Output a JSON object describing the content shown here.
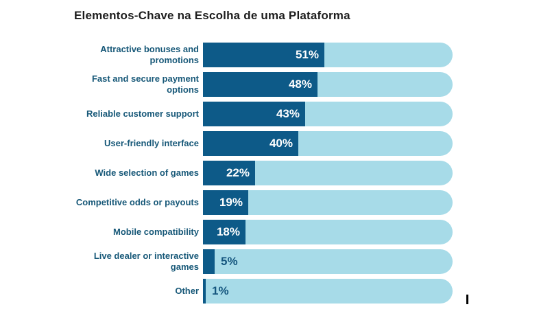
{
  "title": "Elementos-Chave na Escolha de uma Plataforma",
  "chart_data": {
    "type": "bar",
    "orientation": "horizontal",
    "title": "Elementos-Chave na Escolha de uma Plataforma",
    "categories": [
      "Attractive bonuses and promotions",
      "Fast and secure payment options",
      "Reliable customer support",
      "User-friendly interface",
      "Wide selection of games",
      "Competitive odds or payouts",
      "Mobile compatibility",
      "Live dealer or interactive games",
      "Other"
    ],
    "category_lines": [
      "Attractive bonuses and\npromotions",
      "Fast and secure payment\noptions",
      "Reliable customer support",
      "User-friendly interface",
      "Wide selection of games",
      "Competitive odds or payouts",
      "Mobile compatibility",
      "Live dealer or interactive\ngames",
      "Other"
    ],
    "values": [
      51,
      48,
      43,
      40,
      22,
      19,
      18,
      5,
      1
    ],
    "value_labels": [
      "51%",
      "48%",
      "43%",
      "40%",
      "22%",
      "19%",
      "18%",
      "5%",
      "1%"
    ],
    "xlim": [
      0,
      105
    ],
    "grid": false,
    "legend": false,
    "colors": {
      "bar_fill": "#0d5a88",
      "bar_track": "#a7dbe8",
      "category_label": "#175878",
      "value_label_inside": "#ffffff",
      "value_label_outside": "#15567e",
      "title_text": "#1d1d1d"
    }
  }
}
